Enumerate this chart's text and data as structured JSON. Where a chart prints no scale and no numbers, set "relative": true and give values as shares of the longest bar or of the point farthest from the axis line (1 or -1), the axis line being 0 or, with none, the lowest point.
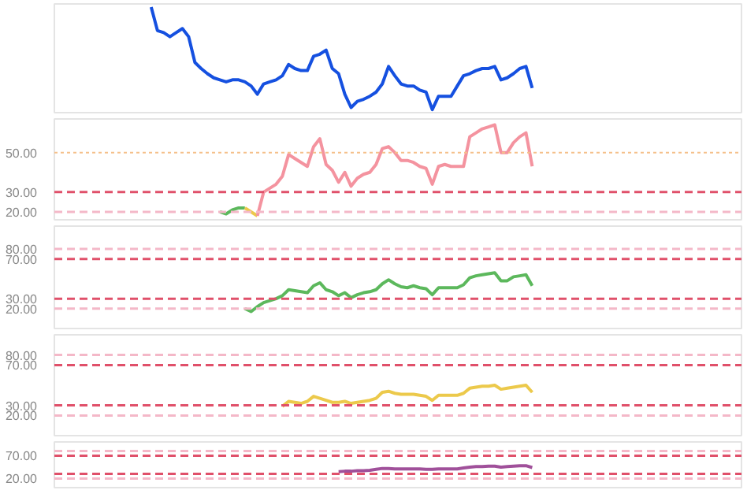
{
  "chart_data": [
    {
      "type": "line",
      "relative": true,
      "tick_labels": false,
      "categories": [
        null,
        null,
        null,
        null,
        null,
        null,
        null,
        null,
        null,
        null,
        null,
        null,
        null,
        null,
        null,
        null,
        null,
        null,
        null,
        null,
        null,
        null,
        null,
        null,
        null,
        null,
        null,
        null,
        null,
        null,
        null,
        null,
        null,
        null,
        null,
        null,
        null,
        null,
        null,
        null,
        null,
        null,
        null,
        null,
        null,
        null,
        null,
        null,
        null,
        null,
        null,
        null,
        null,
        null,
        null,
        null,
        null,
        null,
        null,
        null,
        null,
        null,
        null,
        null,
        null,
        null,
        null,
        null,
        null,
        null,
        null,
        null,
        null,
        null,
        null,
        null,
        null,
        null,
        null,
        null,
        null,
        null,
        null,
        null,
        null,
        null,
        null,
        null,
        null,
        null,
        null,
        null,
        null,
        null,
        null,
        null,
        null,
        null,
        null,
        null,
        null,
        null,
        null,
        null,
        null,
        null,
        null,
        null,
        null,
        null
      ],
      "series": [
        {
          "color": "#1550e0",
          "values": [
            null,
            null,
            null,
            null,
            null,
            null,
            null,
            null,
            null,
            null,
            null,
            null,
            null,
            null,
            null,
            1,
            0.77,
            0.75,
            0.71,
            0.75,
            0.79,
            0.71,
            0.46,
            0.4,
            0.35,
            0.31,
            0.29,
            0.27,
            0.29,
            0.29,
            0.27,
            0.23,
            0.15,
            0.25,
            0.27,
            0.29,
            0.33,
            0.44,
            0.4,
            0.38,
            0.38,
            0.52,
            0.54,
            0.58,
            0.4,
            0.35,
            0.15,
            0.02,
            0.08,
            0.1,
            0.13,
            0.17,
            0.25,
            0.42,
            0.33,
            0.25,
            0.23,
            0.23,
            0.19,
            0.17,
            0,
            0.13,
            0.13,
            0.13,
            0.23,
            0.33,
            0.35,
            0.38,
            0.4,
            0.4,
            0.42,
            0.29,
            0.31,
            0.35,
            0.4,
            0.42,
            0.21,
            null,
            null,
            null,
            null,
            null,
            null,
            null,
            null,
            null,
            null,
            null,
            null,
            null,
            null,
            null,
            null,
            null,
            null,
            null,
            null,
            null,
            null,
            null,
            null,
            null,
            null,
            null,
            null,
            null,
            null,
            null,
            null,
            null
          ]
        }
      ]
    },
    {
      "type": "line",
      "tick_labels": "y",
      "categories": [
        null,
        null,
        null,
        null,
        null,
        null,
        null,
        null,
        null,
        null,
        null,
        null,
        null,
        null,
        null,
        null,
        null,
        null,
        null,
        null,
        null,
        null,
        null,
        null,
        null,
        null,
        null,
        null,
        null,
        null,
        null,
        null,
        null,
        null,
        null,
        null,
        null,
        null,
        null,
        null,
        null,
        null,
        null,
        null,
        null,
        null,
        null,
        null,
        null,
        null,
        null,
        null,
        null,
        null,
        null,
        null,
        null,
        null,
        null,
        null,
        null,
        null,
        null,
        null,
        null,
        null,
        null,
        null,
        null,
        null,
        null,
        null,
        null,
        null,
        null,
        null,
        null,
        null,
        null,
        null,
        null,
        null,
        null,
        null,
        null,
        null,
        null,
        null,
        null,
        null,
        null,
        null,
        null,
        null,
        null,
        null,
        null,
        null,
        null,
        null,
        null,
        null,
        null,
        null,
        null,
        null,
        null,
        null,
        null,
        null
      ],
      "ylim": [
        16,
        67
      ],
      "yticks": [
        {
          "value": 50,
          "label": "50.00"
        },
        {
          "value": 30,
          "label": "30.00"
        },
        {
          "value": 20,
          "label": "20.00"
        }
      ],
      "ref_lines": [
        {
          "axis": "y",
          "value": 50,
          "color": "#f5c08a",
          "line_style": "dotted"
        },
        {
          "axis": "y",
          "value": 30,
          "color": "#e0506a",
          "line_style": "dashed"
        },
        {
          "axis": "y",
          "value": 20,
          "color": "#f4b8c8",
          "line_style": "dashed"
        }
      ],
      "series": [
        {
          "color": "#5cb85c",
          "values": [
            null,
            null,
            null,
            null,
            null,
            null,
            null,
            null,
            null,
            null,
            null,
            null,
            null,
            null,
            null,
            null,
            null,
            null,
            null,
            null,
            null,
            null,
            null,
            null,
            null,
            null,
            20,
            19,
            21,
            22,
            22,
            null,
            null,
            null,
            null,
            null,
            null,
            null,
            null,
            null,
            null,
            null,
            null,
            null,
            null,
            null,
            null,
            null,
            null,
            null,
            null,
            null,
            null,
            null,
            null,
            null,
            null,
            null,
            null,
            null,
            null,
            null,
            null,
            null,
            null,
            null,
            null,
            null,
            null,
            null,
            null,
            null,
            null,
            null,
            null,
            null,
            null,
            null,
            null,
            null,
            null,
            null,
            null,
            null,
            null,
            null,
            null,
            null,
            null,
            null,
            null,
            null,
            null,
            null,
            null,
            null,
            null,
            null,
            null,
            null,
            null,
            null,
            null,
            null,
            null,
            null,
            null,
            null,
            null,
            null
          ]
        },
        {
          "color": "#ecc94b",
          "values": [
            null,
            null,
            null,
            null,
            null,
            null,
            null,
            null,
            null,
            null,
            null,
            null,
            null,
            null,
            null,
            null,
            null,
            null,
            null,
            null,
            null,
            null,
            null,
            null,
            null,
            null,
            null,
            null,
            null,
            null,
            22,
            20,
            18,
            null,
            null,
            null,
            null,
            null,
            null,
            null,
            null,
            null,
            null,
            null,
            null,
            null,
            null,
            null,
            null,
            null,
            null,
            null,
            null,
            null,
            null,
            null,
            null,
            null,
            null,
            null,
            null,
            null,
            null,
            null,
            null,
            null,
            null,
            null,
            null,
            null,
            null,
            null,
            null,
            null,
            null,
            null,
            null,
            null,
            null,
            null,
            null,
            null,
            null,
            null,
            null,
            null,
            null,
            null,
            null,
            null,
            null,
            null,
            null,
            null,
            null,
            null,
            null,
            null,
            null,
            null,
            null,
            null,
            null,
            null,
            null,
            null,
            null,
            null,
            null,
            null
          ]
        },
        {
          "color": "#f4939f",
          "values": [
            null,
            null,
            null,
            null,
            null,
            null,
            null,
            null,
            null,
            null,
            null,
            null,
            null,
            null,
            null,
            null,
            null,
            null,
            null,
            null,
            null,
            null,
            null,
            null,
            null,
            null,
            null,
            null,
            null,
            null,
            null,
            null,
            18,
            30,
            32,
            34,
            38,
            49,
            47,
            45,
            43,
            53,
            57,
            44,
            41,
            35,
            40,
            33,
            37,
            39,
            40,
            44,
            52,
            53,
            50,
            46,
            46,
            45,
            43,
            42,
            34,
            43,
            44,
            43,
            43,
            43,
            58,
            60,
            62,
            63,
            64,
            50,
            50,
            55,
            58,
            60,
            43,
            null,
            null,
            null,
            null,
            null,
            null,
            null,
            null,
            null,
            null,
            null,
            null,
            null,
            null,
            null,
            null,
            null,
            null,
            null,
            null,
            null,
            null,
            null,
            null,
            null,
            null,
            null,
            null,
            null,
            null,
            null,
            null,
            null
          ]
        }
      ]
    },
    {
      "type": "line",
      "tick_labels": "y",
      "categories": [
        null,
        null,
        null,
        null,
        null,
        null,
        null,
        null,
        null,
        null,
        null,
        null,
        null,
        null,
        null,
        null,
        null,
        null,
        null,
        null,
        null,
        null,
        null,
        null,
        null,
        null,
        null,
        null,
        null,
        null,
        null,
        null,
        null,
        null,
        null,
        null,
        null,
        null,
        null,
        null,
        null,
        null,
        null,
        null,
        null,
        null,
        null,
        null,
        null,
        null,
        null,
        null,
        null,
        null,
        null,
        null,
        null,
        null,
        null,
        null,
        null,
        null,
        null,
        null,
        null,
        null,
        null,
        null,
        null,
        null,
        null,
        null,
        null,
        null,
        null,
        null,
        null,
        null,
        null,
        null,
        null,
        null,
        null,
        null,
        null,
        null,
        null,
        null,
        null,
        null,
        null,
        null,
        null,
        null,
        null,
        null,
        null,
        null,
        null,
        null,
        null,
        null,
        null,
        null,
        null,
        null,
        null,
        null,
        null,
        null
      ],
      "ylim": [
        0,
        103
      ],
      "yticks": [
        {
          "value": 80,
          "label": "80.00"
        },
        {
          "value": 70,
          "label": "70.00"
        },
        {
          "value": 30,
          "label": "30.00"
        },
        {
          "value": 20,
          "label": "20.00"
        }
      ],
      "ref_lines": [
        {
          "axis": "y",
          "value": 80,
          "color": "#f4b8c8",
          "line_style": "dashed"
        },
        {
          "axis": "y",
          "value": 70,
          "color": "#e0506a",
          "line_style": "dashed"
        },
        {
          "axis": "y",
          "value": 30,
          "color": "#e0506a",
          "line_style": "dashed"
        },
        {
          "axis": "y",
          "value": 20,
          "color": "#f4b8c8",
          "line_style": "dashed"
        }
      ],
      "series": [
        {
          "color": "#5cb85c",
          "values": [
            null,
            null,
            null,
            null,
            null,
            null,
            null,
            null,
            null,
            null,
            null,
            null,
            null,
            null,
            null,
            null,
            null,
            null,
            null,
            null,
            null,
            null,
            null,
            null,
            null,
            null,
            null,
            null,
            null,
            null,
            20,
            17,
            22,
            26,
            28,
            30,
            33,
            39,
            38,
            37,
            36,
            43,
            46,
            39,
            37,
            33,
            36,
            31,
            34,
            36,
            37,
            39,
            45,
            49,
            45,
            42,
            41,
            43,
            41,
            40,
            34,
            41,
            41,
            41,
            41,
            44,
            51,
            53,
            54,
            55,
            56,
            48,
            48,
            52,
            53,
            54,
            43,
            null,
            null,
            null,
            null,
            null,
            null,
            null,
            null,
            null,
            null,
            null,
            null,
            null,
            null,
            null,
            null,
            null,
            null,
            null,
            null,
            null,
            null,
            null,
            null,
            null,
            null,
            null,
            null,
            null,
            null,
            null,
            null,
            null
          ]
        }
      ]
    },
    {
      "type": "line",
      "tick_labels": "y",
      "categories": [
        null,
        null,
        null,
        null,
        null,
        null,
        null,
        null,
        null,
        null,
        null,
        null,
        null,
        null,
        null,
        null,
        null,
        null,
        null,
        null,
        null,
        null,
        null,
        null,
        null,
        null,
        null,
        null,
        null,
        null,
        null,
        null,
        null,
        null,
        null,
        null,
        null,
        null,
        null,
        null,
        null,
        null,
        null,
        null,
        null,
        null,
        null,
        null,
        null,
        null,
        null,
        null,
        null,
        null,
        null,
        null,
        null,
        null,
        null,
        null,
        null,
        null,
        null,
        null,
        null,
        null,
        null,
        null,
        null,
        null,
        null,
        null,
        null,
        null,
        null,
        null,
        null,
        null,
        null,
        null,
        null,
        null,
        null,
        null,
        null,
        null,
        null,
        null,
        null,
        null,
        null,
        null,
        null,
        null,
        null,
        null,
        null,
        null,
        null,
        null,
        null,
        null,
        null,
        null,
        null,
        null,
        null,
        null,
        null,
        null
      ],
      "ylim": [
        0,
        100
      ],
      "yticks": [
        {
          "value": 80,
          "label": "80.00"
        },
        {
          "value": 70,
          "label": "70.00"
        },
        {
          "value": 30,
          "label": "30.00"
        },
        {
          "value": 20,
          "label": "20.00"
        }
      ],
      "ref_lines": [
        {
          "axis": "y",
          "value": 80,
          "color": "#f4b8c8",
          "line_style": "dashed"
        },
        {
          "axis": "y",
          "value": 70,
          "color": "#e0506a",
          "line_style": "dashed"
        },
        {
          "axis": "y",
          "value": 30,
          "color": "#e0506a",
          "line_style": "dashed"
        },
        {
          "axis": "y",
          "value": 20,
          "color": "#f4b8c8",
          "line_style": "dashed"
        }
      ],
      "series": [
        {
          "color": "#ecc94b",
          "values": [
            null,
            null,
            null,
            null,
            null,
            null,
            null,
            null,
            null,
            null,
            null,
            null,
            null,
            null,
            null,
            null,
            null,
            null,
            null,
            null,
            null,
            null,
            null,
            null,
            null,
            null,
            null,
            null,
            null,
            null,
            null,
            null,
            null,
            null,
            null,
            null,
            29,
            34,
            33,
            32,
            34,
            39,
            37,
            35,
            33,
            33,
            34,
            32,
            33,
            34,
            35,
            37,
            43,
            44,
            42,
            41,
            41,
            41,
            40,
            39,
            35,
            40,
            40,
            40,
            40,
            42,
            47,
            48,
            49,
            49,
            50,
            46,
            47,
            48,
            49,
            50,
            43,
            null,
            null,
            null,
            null,
            null,
            null,
            null,
            null,
            null,
            null,
            null,
            null,
            null,
            null,
            null,
            null,
            null,
            null,
            null,
            null,
            null,
            null,
            null,
            null,
            null,
            null,
            null,
            null,
            null,
            null,
            null,
            null,
            null
          ]
        }
      ]
    },
    {
      "type": "line",
      "tick_labels": "y",
      "categories": [
        null,
        null,
        null,
        null,
        null,
        null,
        null,
        null,
        null,
        null,
        null,
        null,
        null,
        null,
        null,
        null,
        null,
        null,
        null,
        null,
        null,
        null,
        null,
        null,
        null,
        null,
        null,
        null,
        null,
        null,
        null,
        null,
        null,
        null,
        null,
        null,
        null,
        null,
        null,
        null,
        null,
        null,
        null,
        null,
        null,
        null,
        null,
        null,
        null,
        null,
        null,
        null,
        null,
        null,
        null,
        null,
        null,
        null,
        null,
        null,
        null,
        null,
        null,
        null,
        null,
        null,
        null,
        null,
        null,
        null,
        null,
        null,
        null,
        null,
        null,
        null,
        null,
        null,
        null,
        null,
        null,
        null,
        null,
        null,
        null,
        null,
        null,
        null,
        null,
        null,
        null,
        null,
        null,
        null,
        null,
        null,
        null,
        null,
        null,
        null,
        null,
        null,
        null,
        null,
        null,
        null,
        null,
        null,
        null,
        null
      ],
      "ylim": [
        0,
        100
      ],
      "yticks": [
        {
          "value": 70,
          "label": "70.00"
        },
        {
          "value": 20,
          "label": "20.00"
        }
      ],
      "ref_lines": [
        {
          "axis": "y",
          "value": 80,
          "color": "#f4b8c8",
          "line_style": "dashed"
        },
        {
          "axis": "y",
          "value": 70,
          "color": "#e0506a",
          "line_style": "dashed"
        },
        {
          "axis": "y",
          "value": 30,
          "color": "#e0506a",
          "line_style": "dashed"
        },
        {
          "axis": "y",
          "value": 20,
          "color": "#f4b8c8",
          "line_style": "dashed"
        }
      ],
      "series": [
        {
          "color": "#a0509a",
          "values": [
            null,
            null,
            null,
            null,
            null,
            null,
            null,
            null,
            null,
            null,
            null,
            null,
            null,
            null,
            null,
            null,
            null,
            null,
            null,
            null,
            null,
            null,
            null,
            null,
            null,
            null,
            null,
            null,
            null,
            null,
            null,
            null,
            null,
            null,
            null,
            null,
            null,
            null,
            null,
            null,
            null,
            null,
            null,
            null,
            null,
            35,
            36,
            36,
            37,
            37,
            38,
            40,
            42,
            42,
            41,
            41,
            41,
            41,
            41,
            40,
            40,
            41,
            41,
            41,
            41,
            43,
            45,
            46,
            46,
            47,
            47,
            45,
            46,
            47,
            48,
            48,
            44,
            null,
            null,
            null,
            null,
            null,
            null,
            null,
            null,
            null,
            null,
            null,
            null,
            null,
            null,
            null,
            null,
            null,
            null,
            null,
            null,
            null,
            null,
            null,
            null,
            null,
            null,
            null,
            null,
            null,
            null,
            null,
            null,
            null
          ]
        }
      ]
    }
  ]
}
